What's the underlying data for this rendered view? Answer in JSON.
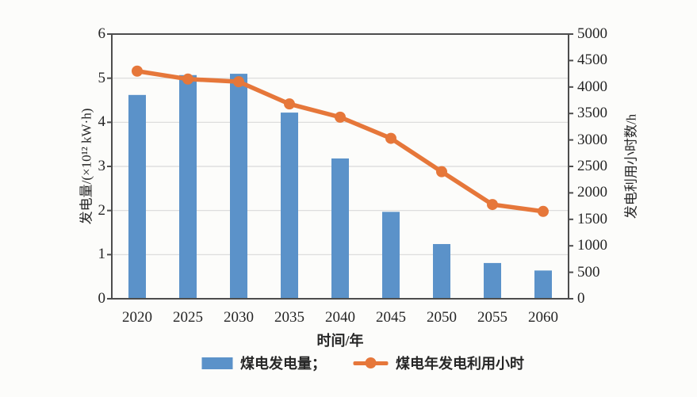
{
  "chart_data": {
    "type": "bar",
    "subtype": "combo-bar-line-dual-axis",
    "categories": [
      "2020",
      "2025",
      "2030",
      "2035",
      "2040",
      "2045",
      "2050",
      "2055",
      "2060"
    ],
    "series": [
      {
        "name": "煤电发电量",
        "type": "bar",
        "axis": "left",
        "color": "#5b92c9",
        "values": [
          4.62,
          5.07,
          5.1,
          4.22,
          3.18,
          1.97,
          1.24,
          0.81,
          0.64
        ]
      },
      {
        "name": "煤电年发电利用小时",
        "type": "line",
        "axis": "right",
        "color": "#e6773a",
        "values": [
          4300,
          4150,
          4100,
          3680,
          3430,
          3030,
          2400,
          1780,
          1650
        ]
      }
    ],
    "left_axis": {
      "label": "发电量/(×10¹² kW·h)",
      "min": 0,
      "max": 6,
      "tick_step": 1
    },
    "right_axis": {
      "label": "发电利用小时数/h",
      "min": 0,
      "max": 5000,
      "tick_step": 500
    },
    "x_axis": {
      "label": "时间/年"
    },
    "legend": {
      "bar_label": "煤电发电量；",
      "line_label": "煤电年发电利用小时"
    },
    "layout_hints": {
      "grid": "horizontal gridlines at left-axis integers 1-5",
      "legend_position": "bottom-center",
      "frame": "full box, dark gray",
      "tick_direction": "outward"
    },
    "colors": {
      "bar": "#5b92c9",
      "line": "#e6773a",
      "frame": "#4d4d4d",
      "gridline": "#d9d9d9",
      "text": "#262626",
      "background": "#fcfcfa"
    }
  }
}
